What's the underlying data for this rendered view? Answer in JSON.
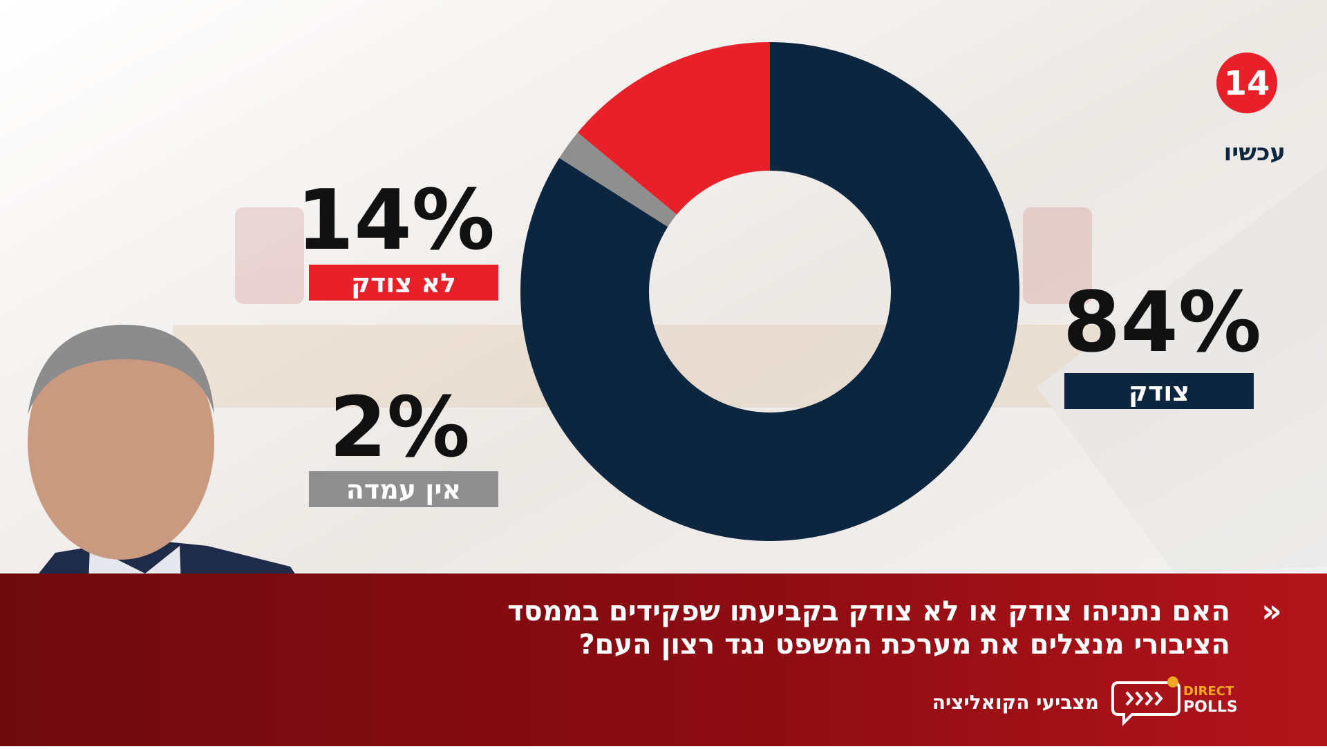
{
  "chart_data": {
    "type": "donut",
    "title": [
      "האם נתניהו צודק או לא צודק בקביעתו שפקידים בממסד",
      "הציבורי מנצלים את מערכת המשפט נגד רצון העם?"
    ],
    "subtitle": "מצביעי הקואליציה",
    "categories": [
      "צודק",
      "אין עמדה",
      "לא צודק"
    ],
    "values": [
      84,
      2,
      14
    ],
    "value_labels": [
      "84%",
      "2%",
      "14%"
    ],
    "colors": [
      "#0d2640",
      "#8f8f8f",
      "#e8202a"
    ]
  },
  "logo": {
    "channel": "14",
    "channel_name": "עכשיו",
    "poll_brand": [
      "DIRECT",
      "POLLS"
    ],
    "arrow": "»"
  }
}
